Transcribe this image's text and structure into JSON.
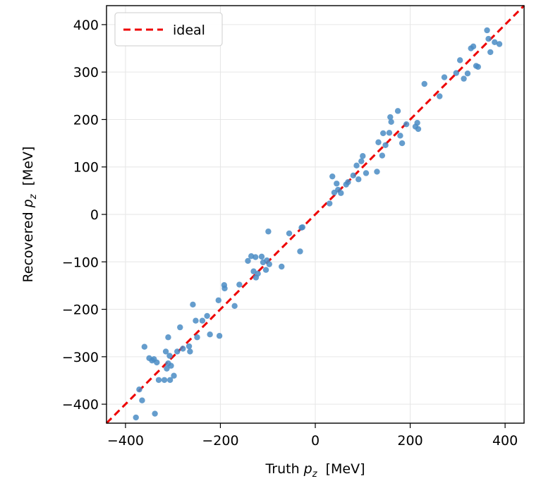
{
  "chart_data": {
    "type": "scatter",
    "xlabel": {
      "prefix": "Truth ",
      "var": "p",
      "sub": "z",
      "suffix": "  [MeV]"
    },
    "ylabel": {
      "prefix": "Recovered ",
      "var": "p",
      "sub": "z",
      "suffix": "  [MeV]"
    },
    "xlim": [
      -440,
      440
    ],
    "ylim": [
      -440,
      440
    ],
    "xticks": [
      -400,
      -200,
      0,
      200,
      400
    ],
    "yticks": [
      -400,
      -300,
      -200,
      -100,
      0,
      100,
      200,
      300,
      400
    ],
    "xtick_labels": [
      "−400",
      "−200",
      "0",
      "200",
      "400"
    ],
    "ytick_labels": [
      "−400",
      "−300",
      "−200",
      "−100",
      "0",
      "100",
      "200",
      "300",
      "400"
    ],
    "grid": true,
    "legend": {
      "position": "top-left",
      "entries": [
        {
          "label": "ideal",
          "style": "dashed",
          "color": "#ee0000"
        }
      ]
    },
    "reference_line": {
      "name": "ideal",
      "slope": 1,
      "intercept": 0,
      "color": "#ee0000"
    },
    "point_color": "#4a8cc4",
    "points": [
      [
        -378,
        -428
      ],
      [
        -371,
        -369
      ],
      [
        -365,
        -392
      ],
      [
        -360,
        -279
      ],
      [
        -350,
        -303
      ],
      [
        -344,
        -308
      ],
      [
        -340,
        -305
      ],
      [
        -338,
        -420
      ],
      [
        -334,
        -312
      ],
      [
        -330,
        -349
      ],
      [
        -318,
        -349
      ],
      [
        -315,
        -289
      ],
      [
        -313,
        -325
      ],
      [
        -310,
        -314
      ],
      [
        -310,
        -259
      ],
      [
        -307,
        -298
      ],
      [
        -306,
        -349
      ],
      [
        -304,
        -319
      ],
      [
        -298,
        -340
      ],
      [
        -291,
        -289
      ],
      [
        -285,
        -238
      ],
      [
        -279,
        -283
      ],
      [
        -266,
        -278
      ],
      [
        -264,
        -289
      ],
      [
        -258,
        -190
      ],
      [
        -252,
        -224
      ],
      [
        -249,
        -259
      ],
      [
        -238,
        -224
      ],
      [
        -228,
        -214
      ],
      [
        -222,
        -253
      ],
      [
        -204,
        -181
      ],
      [
        -202,
        -256
      ],
      [
        -192,
        -149
      ],
      [
        -191,
        -156
      ],
      [
        -170,
        -193
      ],
      [
        -160,
        -148
      ],
      [
        -142,
        -98
      ],
      [
        -135,
        -88
      ],
      [
        -130,
        -120
      ],
      [
        -126,
        -90
      ],
      [
        -125,
        -133
      ],
      [
        -121,
        -125
      ],
      [
        -113,
        -89
      ],
      [
        -110,
        -101
      ],
      [
        -104,
        -117
      ],
      [
        -102,
        -97
      ],
      [
        -99,
        -36
      ],
      [
        -97,
        -105
      ],
      [
        -71,
        -110
      ],
      [
        -55,
        -40
      ],
      [
        -32,
        -78
      ],
      [
        -29,
        -28
      ],
      [
        -27,
        -27
      ],
      [
        30,
        23
      ],
      [
        36,
        80
      ],
      [
        40,
        46
      ],
      [
        45,
        65
      ],
      [
        48,
        52
      ],
      [
        54,
        45
      ],
      [
        65,
        63
      ],
      [
        69,
        68
      ],
      [
        80,
        82
      ],
      [
        87,
        103
      ],
      [
        91,
        74
      ],
      [
        97,
        112
      ],
      [
        100,
        123
      ],
      [
        107,
        87
      ],
      [
        130,
        90
      ],
      [
        133,
        152
      ],
      [
        141,
        124
      ],
      [
        143,
        171
      ],
      [
        148,
        146
      ],
      [
        156,
        172
      ],
      [
        158,
        205
      ],
      [
        160,
        195
      ],
      [
        174,
        218
      ],
      [
        179,
        166
      ],
      [
        183,
        150
      ],
      [
        192,
        190
      ],
      [
        211,
        185
      ],
      [
        215,
        193
      ],
      [
        217,
        180
      ],
      [
        230,
        275
      ],
      [
        262,
        249
      ],
      [
        272,
        289
      ],
      [
        297,
        298
      ],
      [
        305,
        325
      ],
      [
        313,
        286
      ],
      [
        321,
        297
      ],
      [
        328,
        350
      ],
      [
        333,
        354
      ],
      [
        339,
        313
      ],
      [
        343,
        311
      ],
      [
        362,
        388
      ],
      [
        365,
        370
      ],
      [
        369,
        342
      ],
      [
        378,
        363
      ],
      [
        388,
        359
      ]
    ]
  }
}
